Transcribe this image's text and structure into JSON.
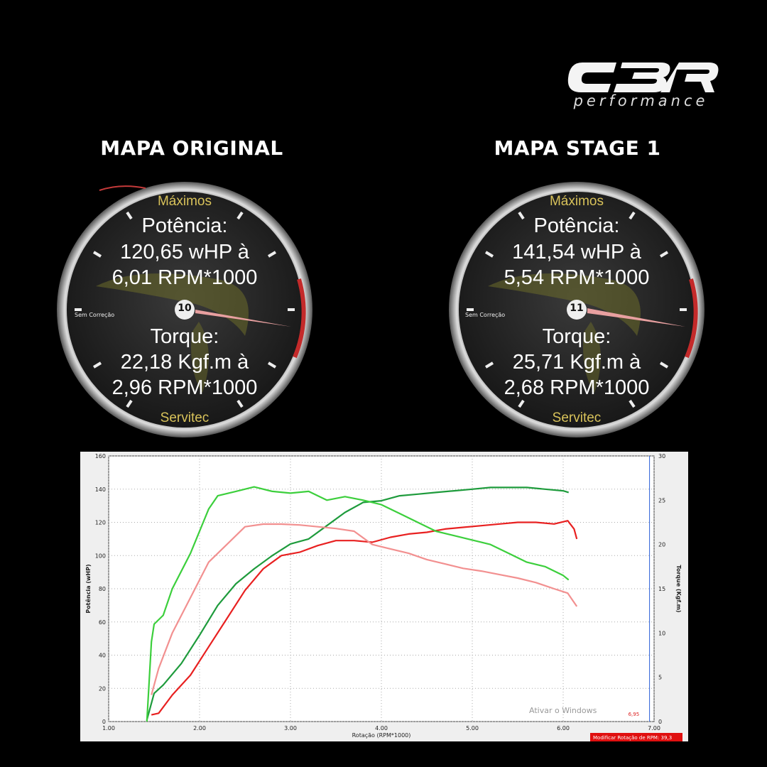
{
  "brand": {
    "logo_text": "CBR",
    "sub": "performance"
  },
  "gauges": [
    {
      "title": "MAPA ORIGINAL",
      "top_label": "Máximos",
      "power_label": "Potência:",
      "power_value": "120,65 wHP  à",
      "power_rpm": "6,01 RPM*1000",
      "torque_label": "Torque:",
      "torque_value": "22,18 Kgf.m  à",
      "torque_rpm": "2,96 RPM*1000",
      "bottom_label": "Servitec",
      "center_number": "10",
      "side_label": "Sem Correção"
    },
    {
      "title": "MAPA STAGE 1",
      "top_label": "Máximos",
      "power_label": "Potência:",
      "power_value": "141,54 wHP  à",
      "power_rpm": "5,54 RPM*1000",
      "torque_label": "Torque:",
      "torque_value": "25,71 Kgf.m  à",
      "torque_rpm": "2,68 RPM*1000",
      "bottom_label": "Servitec",
      "center_number": "11",
      "side_label": "Sem Correção"
    }
  ],
  "chart_data": {
    "type": "line",
    "xlabel": "Rotação (RPM*1000)",
    "ylabel_left": "Potência (wHP)",
    "ylabel_right": "Torque (Kgf.m)",
    "xlim": [
      1.0,
      7.0
    ],
    "ylim_left": [
      0,
      160
    ],
    "ylim_right": [
      0,
      30
    ],
    "x_ticks": [
      "1.00",
      "2.00",
      "3.00",
      "4.00",
      "5.00",
      "6.00",
      "7.00"
    ],
    "y_ticks_left": [
      "0",
      "20",
      "40",
      "60",
      "80",
      "100",
      "120",
      "140",
      "160"
    ],
    "y_ticks_right": [
      "0",
      "5",
      "10",
      "15",
      "20",
      "25",
      "30"
    ],
    "grid": true,
    "status_bar": "Modificar Rotação de RPM: 39,3",
    "marker_label": "6,95",
    "watermark": "Ativar o Windows",
    "series": [
      {
        "axis": "left",
        "color": "#1e9b3c",
        "x": [
          1.42,
          1.5,
          1.6,
          1.8,
          2.0,
          2.2,
          2.4,
          2.6,
          2.8,
          3.0,
          3.2,
          3.4,
          3.6,
          3.8,
          4.0,
          4.2,
          4.4,
          4.6,
          4.8,
          5.0,
          5.2,
          5.4,
          5.6,
          5.8,
          6.0,
          6.06
        ],
        "y": [
          1,
          17,
          22,
          35,
          52,
          70,
          83,
          92,
          100,
          107,
          110,
          118,
          126,
          132,
          133,
          136,
          137,
          138,
          139,
          140,
          141,
          141,
          141,
          140,
          139,
          138
        ]
      },
      {
        "axis": "left",
        "color": "#e82020",
        "x": [
          1.47,
          1.55,
          1.7,
          1.9,
          2.1,
          2.3,
          2.5,
          2.7,
          2.9,
          3.1,
          3.3,
          3.5,
          3.7,
          3.9,
          4.1,
          4.3,
          4.5,
          4.7,
          4.9,
          5.1,
          5.3,
          5.5,
          5.7,
          5.9,
          6.05,
          6.12,
          6.15
        ],
        "y": [
          4,
          5,
          16,
          28,
          45,
          62,
          79,
          92,
          100,
          102,
          106,
          109,
          109,
          108,
          111,
          113,
          114,
          116,
          117,
          118,
          119,
          120,
          120,
          119,
          121,
          116,
          110
        ]
      },
      {
        "axis": "right",
        "color": "#3ccf3c",
        "x": [
          1.42,
          1.47,
          1.5,
          1.6,
          1.7,
          1.9,
          2.1,
          2.2,
          2.4,
          2.6,
          2.8,
          3.0,
          3.2,
          3.4,
          3.6,
          3.8,
          4.0,
          4.2,
          4.4,
          4.6,
          4.8,
          5.0,
          5.2,
          5.4,
          5.6,
          5.8,
          6.0,
          6.06
        ],
        "y": [
          0,
          9,
          11,
          12,
          15,
          19,
          24,
          25.5,
          26,
          26.5,
          26,
          25.8,
          26,
          25,
          25.4,
          25,
          24.5,
          23.5,
          22.5,
          21.5,
          21,
          20.5,
          20,
          19,
          18,
          17.5,
          16.5,
          16
        ]
      },
      {
        "axis": "right",
        "color": "#f29090",
        "x": [
          1.47,
          1.55,
          1.7,
          1.9,
          2.1,
          2.3,
          2.5,
          2.7,
          2.9,
          3.1,
          3.3,
          3.5,
          3.7,
          3.9,
          4.1,
          4.3,
          4.5,
          4.7,
          4.9,
          5.1,
          5.3,
          5.5,
          5.7,
          5.9,
          6.05,
          6.15
        ],
        "y": [
          3,
          6,
          10,
          14,
          18,
          20,
          22,
          22.3,
          22.3,
          22.2,
          22,
          21.8,
          21.5,
          20,
          19.5,
          19,
          18.3,
          17.8,
          17.3,
          17,
          16.6,
          16.2,
          15.7,
          15,
          14.5,
          13
        ]
      }
    ]
  }
}
